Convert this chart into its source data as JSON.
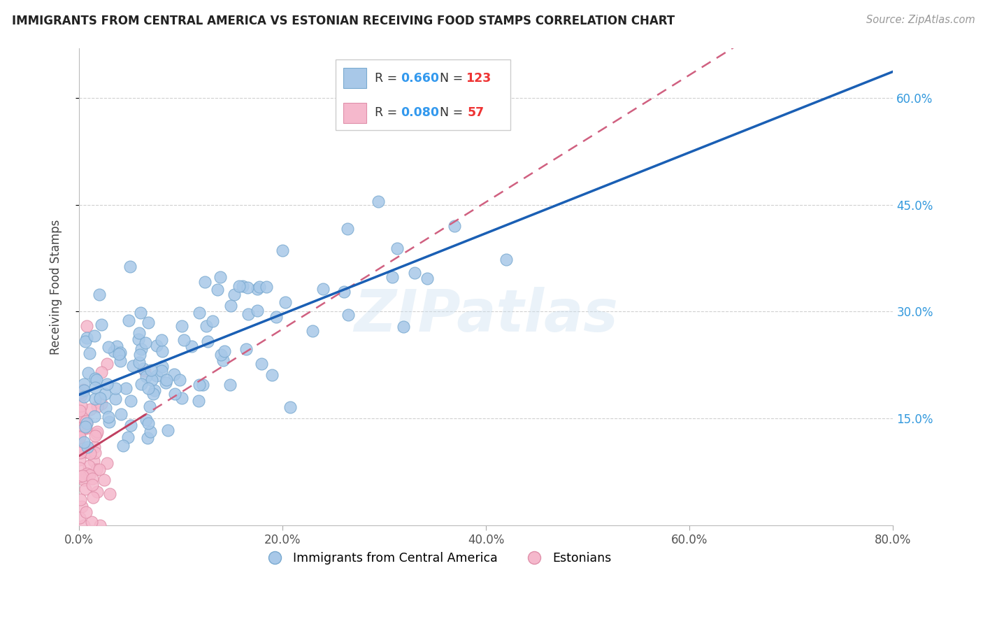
{
  "title": "IMMIGRANTS FROM CENTRAL AMERICA VS ESTONIAN RECEIVING FOOD STAMPS CORRELATION CHART",
  "source": "Source: ZipAtlas.com",
  "ylabel": "Receiving Food Stamps",
  "x_tick_labels": [
    "0.0%",
    "20.0%",
    "40.0%",
    "60.0%",
    "80.0%"
  ],
  "x_tick_positions": [
    0.0,
    20.0,
    40.0,
    60.0,
    80.0
  ],
  "y_tick_labels": [
    "15.0%",
    "30.0%",
    "45.0%",
    "60.0%"
  ],
  "y_tick_positions": [
    15.0,
    30.0,
    45.0,
    60.0
  ],
  "xlim": [
    0.0,
    80.0
  ],
  "ylim": [
    0.0,
    67.0
  ],
  "blue_color": "#a8c8e8",
  "blue_edge_color": "#7aaad0",
  "blue_line_color": "#1a5fb4",
  "pink_color": "#f5b8cc",
  "pink_edge_color": "#e090aa",
  "pink_line_color": "#c04060",
  "pink_dash_color": "#d06080",
  "watermark": "ZIPatlas",
  "background_color": "#ffffff",
  "grid_color": "#d0d0d0",
  "legend_label_blue": "Immigrants from Central America",
  "legend_label_pink": "Estonians",
  "blue_r": "0.660",
  "blue_n": "123",
  "pink_r": "0.080",
  "pink_n": "57"
}
